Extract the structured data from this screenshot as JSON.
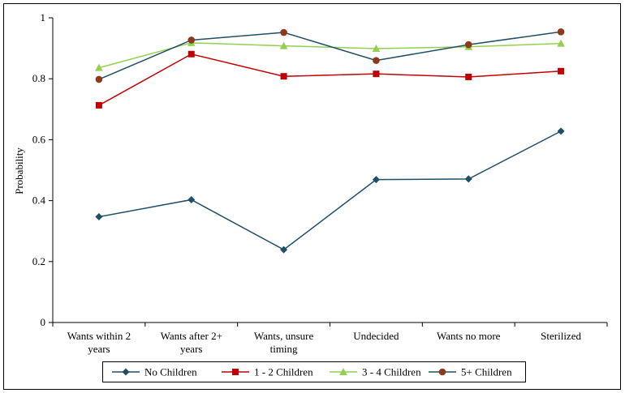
{
  "chart_data": {
    "type": "line",
    "title": "",
    "xlabel": "",
    "ylabel": "Probability",
    "ylim": [
      0,
      1
    ],
    "yticks": [
      "0",
      "0.2",
      "0.4",
      "0.6",
      "0.8",
      "1"
    ],
    "categories": [
      [
        "Wants within 2",
        "years"
      ],
      [
        "Wants after 2+",
        "years"
      ],
      [
        "Wants, unsure",
        "timing"
      ],
      [
        "Undecided"
      ],
      [
        "Wants no more"
      ],
      [
        "Sterilized"
      ]
    ],
    "grid": false,
    "legend_position": "bottom",
    "series": [
      {
        "name": "No Children",
        "color": "#1f4e67",
        "marker": "diamond",
        "values": [
          0.347,
          0.403,
          0.239,
          0.469,
          0.471,
          0.628
        ]
      },
      {
        "name": "1 - 2 Children",
        "color": "#c00000",
        "marker": "square",
        "values": [
          0.713,
          0.881,
          0.808,
          0.816,
          0.806,
          0.825
        ]
      },
      {
        "name": "3 - 4 Children",
        "color": "#92d050",
        "marker": "triangle",
        "values": [
          0.836,
          0.918,
          0.908,
          0.899,
          0.905,
          0.916
        ]
      },
      {
        "name": "5+ Children",
        "color": "#1f4e67",
        "marker": "circle",
        "marker_color": "#8b3a1a",
        "values": [
          0.798,
          0.927,
          0.952,
          0.86,
          0.912,
          0.954
        ]
      }
    ]
  }
}
